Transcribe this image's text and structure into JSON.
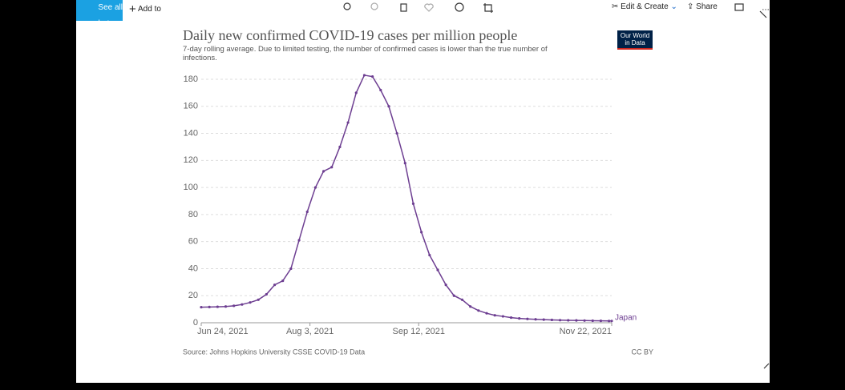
{
  "toolbar": {
    "back": "See all photos",
    "add": "Add to",
    "edit": "Edit & Create",
    "share": "Share"
  },
  "chart_data": {
    "type": "line",
    "title": "Daily new confirmed COVID-19 cases per million people",
    "subtitle": "7-day rolling average. Due to limited testing, the number of confirmed cases is lower than the true number of infections.",
    "logo": "Our World in Data",
    "source": "Source: Johns Hopkins University CSSE COVID-19 Data",
    "license": "CC BY",
    "x": [
      "Jun 24, 2021",
      "Jun 27, 2021",
      "Jun 30, 2021",
      "Jul 3, 2021",
      "Jul 6, 2021",
      "Jul 9, 2021",
      "Jul 12, 2021",
      "Jul 15, 2021",
      "Jul 18, 2021",
      "Jul 21, 2021",
      "Jul 24, 2021",
      "Jul 27, 2021",
      "Jul 30, 2021",
      "Aug 2, 2021",
      "Aug 5, 2021",
      "Aug 8, 2021",
      "Aug 11, 2021",
      "Aug 14, 2021",
      "Aug 17, 2021",
      "Aug 20, 2021",
      "Aug 23, 2021",
      "Aug 26, 2021",
      "Aug 29, 2021",
      "Sep 1, 2021",
      "Sep 4, 2021",
      "Sep 7, 2021",
      "Sep 10, 2021",
      "Sep 13, 2021",
      "Sep 16, 2021",
      "Sep 19, 2021",
      "Sep 22, 2021",
      "Sep 25, 2021",
      "Sep 28, 2021",
      "Oct 1, 2021",
      "Oct 4, 2021",
      "Oct 7, 2021",
      "Oct 10, 2021",
      "Oct 13, 2021",
      "Oct 16, 2021",
      "Oct 19, 2021",
      "Oct 22, 2021",
      "Oct 25, 2021",
      "Oct 28, 2021",
      "Oct 31, 2021",
      "Nov 3, 2021",
      "Nov 6, 2021",
      "Nov 9, 2021",
      "Nov 12, 2021",
      "Nov 15, 2021",
      "Nov 18, 2021",
      "Nov 21, 2021",
      "Nov 22, 2021"
    ],
    "series": [
      {
        "name": "Japan",
        "color": "#6d3e91",
        "values": [
          11.5,
          11.6,
          11.8,
          12,
          12.5,
          13.5,
          15,
          17,
          21,
          28,
          31,
          40,
          61,
          82,
          100,
          112,
          115,
          130,
          148,
          170,
          183,
          182,
          172,
          160,
          140,
          118,
          88,
          67,
          50,
          39,
          28,
          20,
          17,
          12,
          9,
          7,
          5.5,
          4.7,
          3.8,
          3.2,
          2.8,
          2.5,
          2.3,
          2.1,
          1.9,
          1.8,
          1.7,
          1.6,
          1.5,
          1.4,
          1.3,
          1.3
        ]
      }
    ],
    "xlim": [
      "Jun 24, 2021",
      "Nov 22, 2021"
    ],
    "xticks": [
      "Jun 24, 2021",
      "Aug 3, 2021",
      "Sep 12, 2021",
      "Nov 22, 2021"
    ],
    "ylim": [
      0,
      180
    ],
    "yticks": [
      0,
      20,
      40,
      60,
      80,
      100,
      120,
      140,
      160,
      180
    ],
    "grid": true
  }
}
